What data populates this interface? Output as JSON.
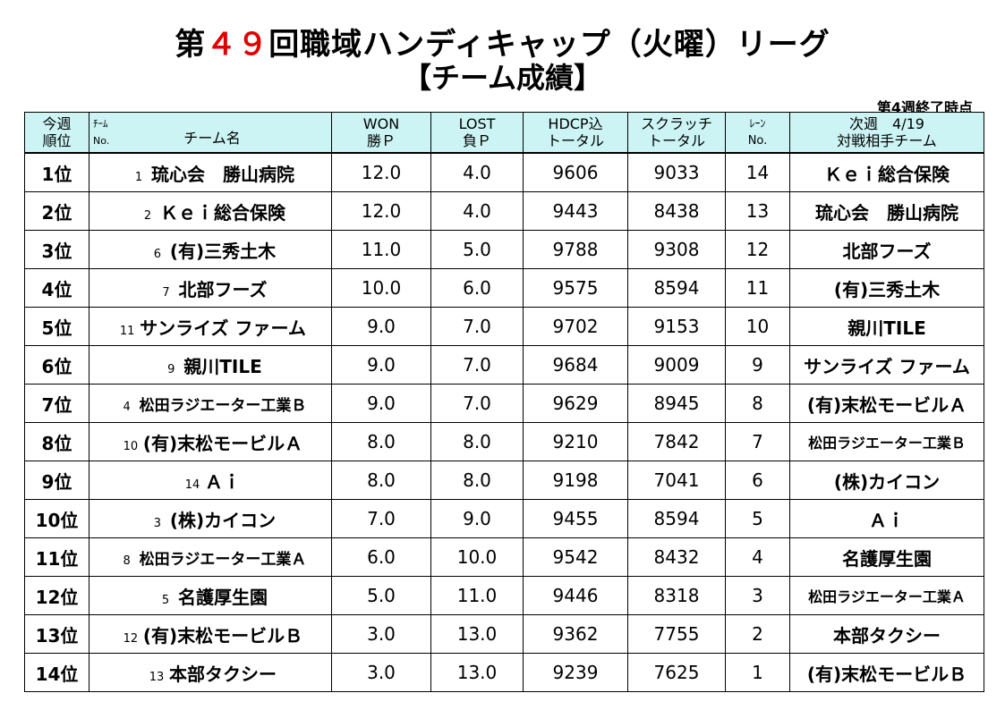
{
  "title": {
    "prefix": "第",
    "number": "４９",
    "suffix": "回職域ハンディキャップ（火曜）リーグ",
    "subtitle": "【チーム成績】"
  },
  "as_of": "第4週終了時点",
  "headers": {
    "rank_line1": "今週",
    "rank_line2": "順位",
    "team_small1": "ﾁｰﾑ",
    "team_small2": "No.",
    "team_name": "チーム名",
    "won_line1": "WON",
    "won_line2": "勝Ｐ",
    "lost_line1": "LOST",
    "lost_line2": "負Ｐ",
    "hdcp_line1": "HDCP込",
    "hdcp_line2": "トータル",
    "scratch_line1": "スクラッチ",
    "scratch_line2": "トータル",
    "lane_line1": "ﾚｰﾝ",
    "lane_line2": "No.",
    "next_line1": "次週　4/19",
    "next_line2": "対戦相手チーム"
  },
  "rows": [
    {
      "rank": "1位",
      "no": "1",
      "team": "琉心会　勝山病院",
      "won": "12.0",
      "lost": "4.0",
      "hdcp": "9606",
      "scratch": "9033",
      "lane": "14",
      "opponent": "Ｋｅｉ総合保険"
    },
    {
      "rank": "2位",
      "no": "2",
      "team": "Ｋｅｉ総合保険",
      "won": "12.0",
      "lost": "4.0",
      "hdcp": "9443",
      "scratch": "8438",
      "lane": "13",
      "opponent": "琉心会　勝山病院"
    },
    {
      "rank": "3位",
      "no": "6",
      "team": "(有)三秀土木",
      "won": "11.0",
      "lost": "5.0",
      "hdcp": "9788",
      "scratch": "9308",
      "lane": "12",
      "opponent": "北部フーズ"
    },
    {
      "rank": "4位",
      "no": "7",
      "team": "北部フーズ",
      "won": "10.0",
      "lost": "6.0",
      "hdcp": "9575",
      "scratch": "8594",
      "lane": "11",
      "opponent": "(有)三秀土木"
    },
    {
      "rank": "5位",
      "no": "11",
      "team": "サンライズ ファーム",
      "won": "9.0",
      "lost": "7.0",
      "hdcp": "9702",
      "scratch": "9153",
      "lane": "10",
      "opponent": "親川TILE"
    },
    {
      "rank": "6位",
      "no": "9",
      "team": "親川TILE",
      "won": "9.0",
      "lost": "7.0",
      "hdcp": "9684",
      "scratch": "9009",
      "lane": "9",
      "opponent": "サンライズ ファーム"
    },
    {
      "rank": "7位",
      "no": "4",
      "team": "松田ラジエーター工業Ｂ",
      "won": "9.0",
      "lost": "7.0",
      "hdcp": "9629",
      "scratch": "8945",
      "lane": "8",
      "opponent": "(有)末松モービルＡ"
    },
    {
      "rank": "8位",
      "no": "10",
      "team": "(有)末松モービルＡ",
      "won": "8.0",
      "lost": "8.0",
      "hdcp": "9210",
      "scratch": "7842",
      "lane": "7",
      "opponent": "松田ラジエーター工業Ｂ"
    },
    {
      "rank": "9位",
      "no": "14",
      "team": "Ａｉ",
      "won": "8.0",
      "lost": "8.0",
      "hdcp": "9198",
      "scratch": "7041",
      "lane": "6",
      "opponent": "(株)カイコン"
    },
    {
      "rank": "10位",
      "no": "3",
      "team": "(株)カイコン",
      "won": "7.0",
      "lost": "9.0",
      "hdcp": "9455",
      "scratch": "8594",
      "lane": "5",
      "opponent": "Ａｉ"
    },
    {
      "rank": "11位",
      "no": "8",
      "team": "松田ラジエーター工業Ａ",
      "won": "6.0",
      "lost": "10.0",
      "hdcp": "9542",
      "scratch": "8432",
      "lane": "4",
      "opponent": "名護厚生園"
    },
    {
      "rank": "12位",
      "no": "5",
      "team": "名護厚生園",
      "won": "5.0",
      "lost": "11.0",
      "hdcp": "9446",
      "scratch": "8318",
      "lane": "3",
      "opponent": "松田ラジエーター工業Ａ"
    },
    {
      "rank": "13位",
      "no": "12",
      "team": "(有)末松モービルＢ",
      "won": "3.0",
      "lost": "13.0",
      "hdcp": "9362",
      "scratch": "7755",
      "lane": "2",
      "opponent": "本部タクシー"
    },
    {
      "rank": "14位",
      "no": "13",
      "team": "本部タクシー",
      "won": "3.0",
      "lost": "13.0",
      "hdcp": "9239",
      "scratch": "7625",
      "lane": "1",
      "opponent": "(有)末松モービルＢ"
    }
  ]
}
